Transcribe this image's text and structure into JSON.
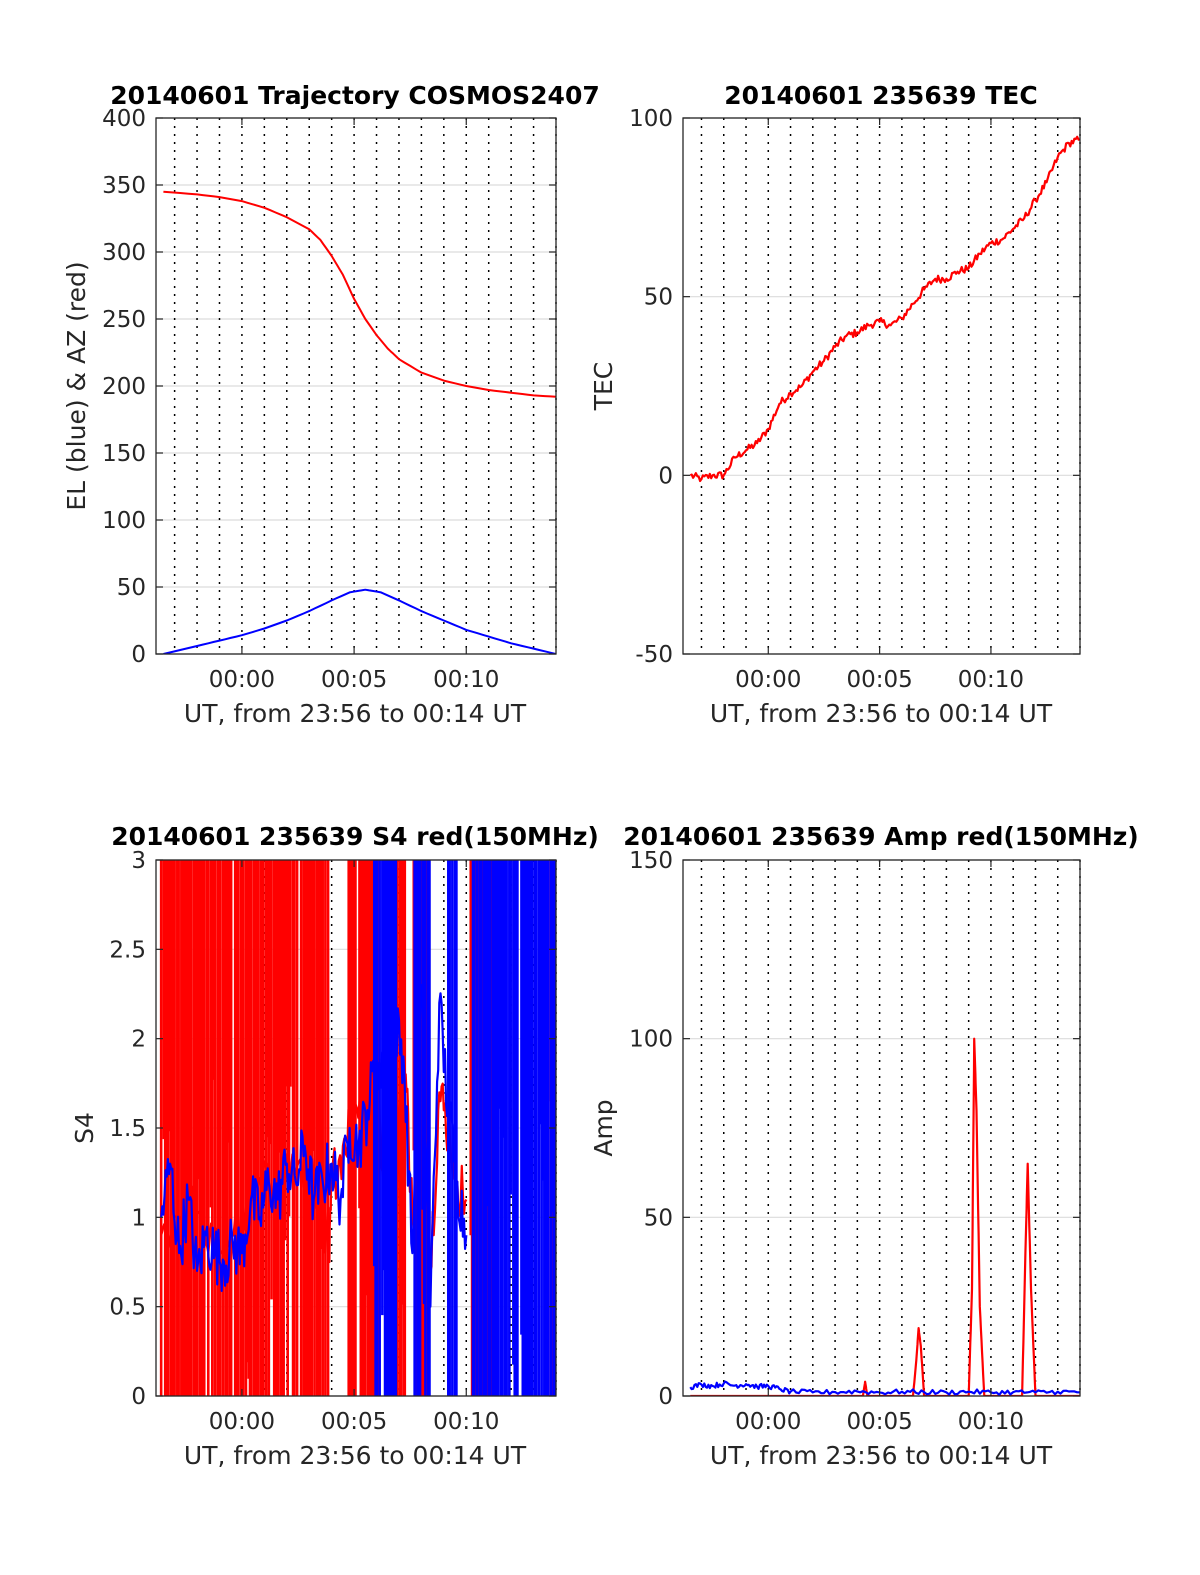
{
  "figure": {
    "background": "#ffffff",
    "grid_color": "#000000",
    "frame_color": "#262626"
  },
  "chart_data": [
    {
      "id": "traj",
      "type": "line",
      "title": "20140601 Trajectory COSMOS2407",
      "xlabel": "UT, from 23:56 to 00:14 UT",
      "ylabel": "EL (blue) & AZ (red)",
      "xlim_min": [
        -3.83,
        14.0
      ],
      "ylim": [
        0,
        400
      ],
      "yticks": [
        0,
        50,
        100,
        150,
        200,
        250,
        300,
        350,
        400
      ],
      "ytick_labels": [
        "0",
        "50",
        "100",
        "150",
        "200",
        "250",
        "300",
        "350",
        "400"
      ],
      "xticks_min": [
        0,
        5,
        10
      ],
      "xtick_labels": [
        "00:00",
        "00:05",
        "00:10"
      ],
      "ygrid": true,
      "xgrid_dotted_step_min": 1,
      "series": [
        {
          "color": "#ff0000",
          "x_min": [
            -3.5,
            -2,
            -1,
            0,
            1,
            2,
            3,
            3.5,
            4,
            4.5,
            5,
            5.5,
            6,
            6.5,
            7,
            8,
            9,
            10,
            11,
            12,
            13,
            14
          ],
          "y": [
            345,
            343,
            341,
            338,
            333,
            326,
            317,
            309,
            297,
            283,
            265,
            250,
            238,
            228,
            220,
            210,
            204,
            200,
            197,
            195,
            193,
            192
          ]
        },
        {
          "color": "#0000ff",
          "x_min": [
            -3.5,
            -2,
            -1,
            0,
            1,
            2,
            3,
            4,
            4.8,
            5.5,
            6.2,
            7,
            8,
            9,
            10,
            11,
            12,
            13,
            14
          ],
          "y": [
            0,
            6,
            10,
            14,
            19,
            25,
            32,
            40,
            46,
            48,
            46,
            40,
            32,
            25,
            18,
            13,
            8,
            4,
            0
          ]
        }
      ]
    },
    {
      "id": "tec",
      "type": "line",
      "title": "20140601 235639 TEC",
      "xlabel": "UT, from 23:56 to 00:14 UT",
      "ylabel": "TEC",
      "xlim_min": [
        -3.83,
        14.0
      ],
      "ylim": [
        -50,
        100
      ],
      "yticks": [
        -50,
        0,
        50,
        100
      ],
      "ytick_labels": [
        "-50",
        "0",
        "50",
        "100"
      ],
      "xticks_min": [
        0,
        5,
        10
      ],
      "xtick_labels": [
        "00:00",
        "00:05",
        "00:10"
      ],
      "ygrid": true,
      "xgrid_dotted_step_min": 1,
      "series": [
        {
          "color": "#ff0000",
          "x_min": [
            -3.5,
            -3,
            -2.5,
            -2,
            -1.5,
            -1,
            -0.5,
            0,
            0.5,
            1,
            1.5,
            2,
            2.5,
            3,
            3.5,
            4,
            4.5,
            5,
            5.5,
            6,
            6.5,
            7,
            7.5,
            8,
            8.5,
            9,
            9.5,
            10,
            10.5,
            11,
            11.5,
            12,
            12.5,
            13,
            13.5,
            14
          ],
          "y": [
            0,
            -1,
            0,
            0,
            5,
            7,
            9,
            13,
            20,
            23,
            25,
            29,
            32,
            36,
            39,
            40,
            42,
            43,
            42,
            44,
            48,
            52,
            55,
            55,
            57,
            58,
            62,
            65,
            66,
            69,
            72,
            77,
            82,
            89,
            93,
            94
          ]
        }
      ]
    },
    {
      "id": "s4",
      "type": "line",
      "title": "20140601 235639 S4 red(150MHz)",
      "xlabel": "UT, from 23:56 to 00:14 UT",
      "ylabel": "S4",
      "xlim_min": [
        -3.83,
        14.0
      ],
      "ylim": [
        0,
        3
      ],
      "yticks": [
        0,
        0.5,
        1,
        1.5,
        2,
        2.5,
        3
      ],
      "ytick_labels": [
        "0",
        "0.5",
        "1",
        "1.5",
        "2",
        "2.5",
        "3"
      ],
      "xticks_min": [
        0,
        5,
        10
      ],
      "xtick_labels": [
        "00:00",
        "00:05",
        "00:10"
      ],
      "ygrid": true,
      "xgrid_dotted_step_min": 1,
      "series": [
        {
          "color": "#ff0000",
          "saturated_intervals_min": [
            [
              -3.6,
              3.9
            ],
            [
              4.7,
              6.1
            ],
            [
              6.9,
              7.3
            ],
            [
              7.6,
              8.3
            ],
            [
              10.2,
              11.3
            ],
            [
              13.6,
              14.0
            ]
          ],
          "x_min": [
            -3.6,
            -2.5,
            -1.5,
            -0.5,
            0.5,
            1.5,
            2.5,
            3.5,
            3.9,
            4.0,
            4.5,
            5.0,
            5.5,
            6.0,
            6.3,
            6.5,
            6.8,
            7.0,
            7.3,
            7.6,
            8.0,
            8.4,
            8.8,
            9.2,
            9.6,
            10.0
          ],
          "y": [
            0.9,
            1.1,
            0.8,
            0.9,
            1.1,
            1.2,
            1.3,
            1.1,
            0.75,
            1.2,
            1.4,
            1.6,
            1.8,
            2.1,
            1.1,
            1.3,
            0.5,
            1.6,
            1.8,
            1.0,
            1.4,
            0.7,
            1.7,
            1.5,
            1.2,
            1.1
          ]
        },
        {
          "color": "#0000ff",
          "saturated_intervals_min": [
            [
              5.9,
              6.9
            ],
            [
              7.7,
              8.4
            ],
            [
              9.2,
              9.6
            ],
            [
              10.3,
              14.0
            ]
          ],
          "x_min": [
            -3.6,
            -3.2,
            -2.8,
            -2.4,
            -2.0,
            -1.6,
            -1.2,
            -0.8,
            -0.4,
            0.0,
            0.4,
            0.8,
            1.2,
            1.6,
            2.0,
            2.4,
            2.8,
            3.2,
            3.6,
            4.0,
            4.4,
            4.8,
            5.2,
            5.6,
            6.0,
            6.4,
            6.8,
            7.2,
            7.6,
            8.0,
            8.4,
            8.8,
            9.2,
            9.6,
            10.0
          ],
          "y": [
            1.0,
            1.3,
            0.8,
            1.1,
            0.7,
            0.9,
            0.8,
            0.75,
            0.85,
            0.8,
            1.1,
            1.0,
            1.2,
            1.1,
            1.3,
            1.2,
            1.4,
            1.1,
            1.2,
            1.3,
            1.1,
            1.5,
            1.4,
            1.6,
            1.9,
            1.7,
            2.1,
            1.9,
            0.8,
            2.3,
            0.5,
            2.2,
            1.6,
            1.2,
            0.9
          ]
        }
      ]
    },
    {
      "id": "amp",
      "type": "line",
      "title": "20140601 235639 Amp red(150MHz)",
      "xlabel": "UT, from 23:56 to 00:14 UT",
      "ylabel": "Amp",
      "xlim_min": [
        -3.83,
        14.0
      ],
      "ylim": [
        0,
        150
      ],
      "yticks": [
        0,
        50,
        100,
        150
      ],
      "ytick_labels": [
        "0",
        "50",
        "100",
        "150"
      ],
      "xticks_min": [
        0,
        5,
        10
      ],
      "xtick_labels": [
        "00:00",
        "00:05",
        "00:10"
      ],
      "ygrid": true,
      "xgrid_dotted_step_min": 1,
      "series": [
        {
          "color": "#ff0000",
          "x_min": [
            -3.5,
            4.0,
            4.25,
            4.35,
            4.45,
            6.5,
            6.65,
            6.75,
            6.85,
            7.0,
            9.0,
            9.15,
            9.25,
            9.35,
            9.5,
            9.7,
            11.4,
            11.55,
            11.65,
            11.8,
            12.0,
            14.0
          ],
          "y": [
            0,
            0,
            0,
            4,
            0,
            0,
            10,
            19,
            14,
            0,
            0,
            30,
            100,
            80,
            25,
            0,
            0,
            40,
            65,
            30,
            0,
            0
          ]
        },
        {
          "color": "#0000ff",
          "x_min": [
            -3.5,
            -3.0,
            -2.5,
            -2.0,
            -1.5,
            -1.0,
            -0.5,
            0.0,
            0.5,
            1.0,
            2.0,
            3.0,
            4.0,
            5.0,
            6.0,
            7.0,
            8.0,
            9.0,
            10.0,
            11.0,
            12.0,
            13.0,
            14.0
          ],
          "y": [
            2.5,
            3.2,
            2.8,
            3.5,
            2.9,
            3.3,
            2.6,
            2.8,
            2.0,
            1.2,
            1.0,
            1.1,
            1.3,
            1.0,
            1.2,
            1.1,
            1.0,
            1.2,
            1.0,
            1.1,
            1.0,
            1.2,
            1.0
          ]
        }
      ]
    }
  ]
}
